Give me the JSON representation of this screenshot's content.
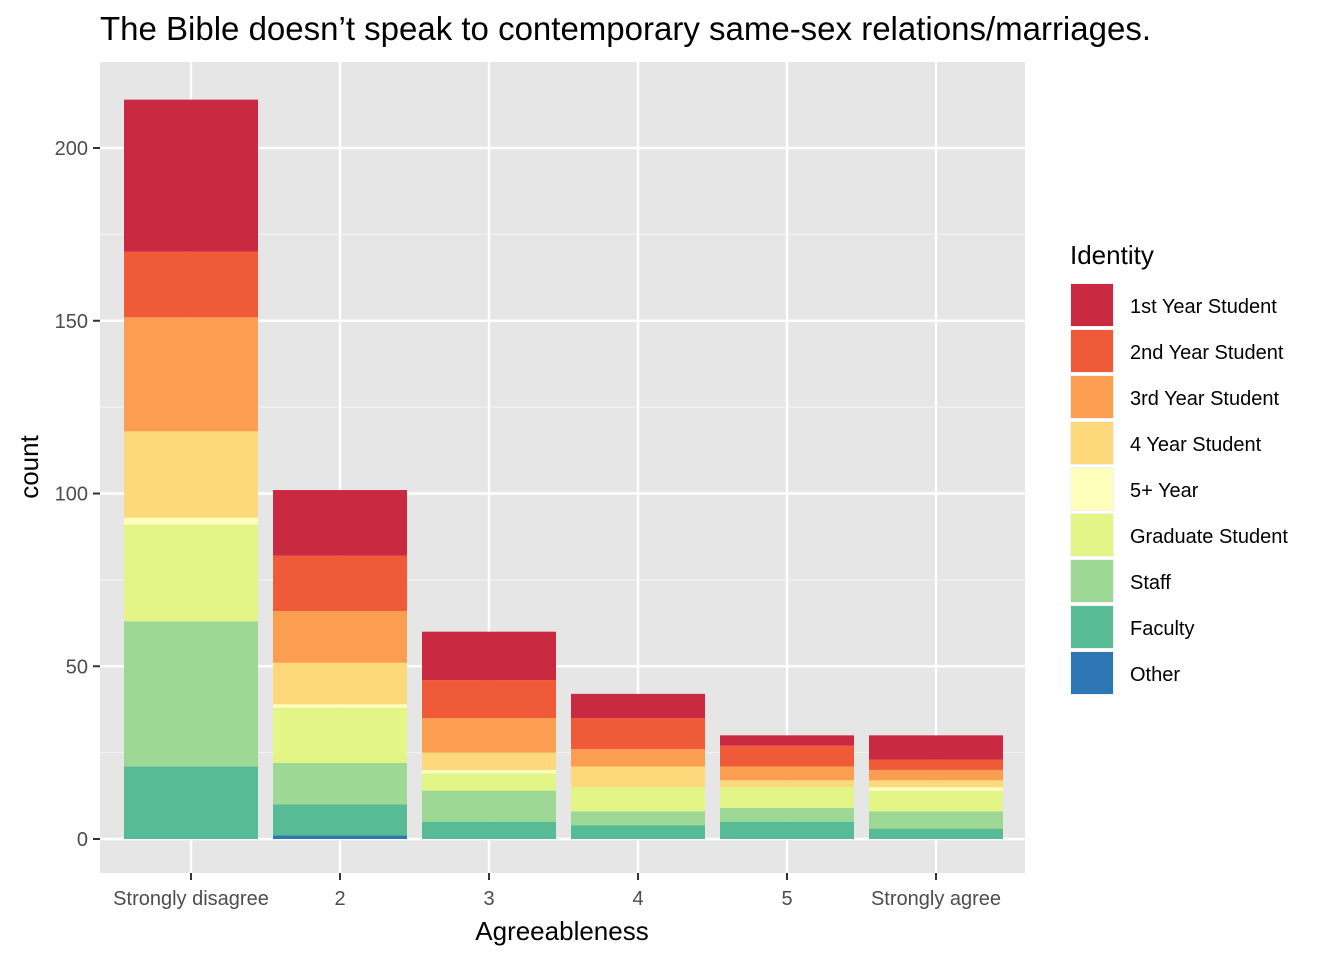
{
  "chart_data": {
    "type": "bar",
    "stacked": true,
    "title": "The Bible doesn’t speak to contemporary same-sex relations/marriages.",
    "xlabel": "Agreeableness",
    "ylabel": "count",
    "categories": [
      "Strongly disagree",
      "2",
      "3",
      "4",
      "5",
      "Strongly agree"
    ],
    "ylim": [
      0,
      220
    ],
    "yticks": [
      0,
      50,
      100,
      150,
      200
    ],
    "grid": true,
    "legend": {
      "title": "Identity",
      "position": "right"
    },
    "series": [
      {
        "name": "1st Year Student",
        "color": "#CA2A41",
        "values": [
          44,
          19,
          14,
          7,
          3,
          7
        ]
      },
      {
        "name": "2nd Year Student",
        "color": "#EF5A38",
        "values": [
          19,
          16,
          11,
          9,
          6,
          3
        ]
      },
      {
        "name": "3rd Year Student",
        "color": "#FB9E52",
        "values": [
          33,
          15,
          10,
          5,
          4,
          3
        ]
      },
      {
        "name": "4 Year Student",
        "color": "#FDD97C",
        "values": [
          25,
          12,
          5,
          6,
          2,
          2
        ]
      },
      {
        "name": "5+ Year",
        "color": "#FEFFBB",
        "values": [
          2,
          1,
          1,
          0,
          0,
          1
        ]
      },
      {
        "name": "Graduate Student",
        "color": "#E3F587",
        "values": [
          28,
          16,
          5,
          7,
          6,
          6
        ]
      },
      {
        "name": "Staff",
        "color": "#9ED895",
        "values": [
          42,
          12,
          9,
          4,
          4,
          5
        ]
      },
      {
        "name": "Faculty",
        "color": "#57BB96",
        "values": [
          21,
          9,
          5,
          4,
          5,
          3
        ]
      },
      {
        "name": "Other",
        "color": "#2F76B5",
        "values": [
          0,
          1,
          0,
          0,
          0,
          0
        ]
      }
    ]
  }
}
